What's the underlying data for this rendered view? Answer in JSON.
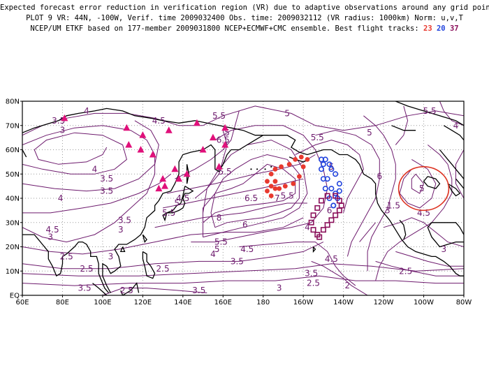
{
  "header": {
    "line1": "Expected forecast error reduction in verification region (VR) due to adaptive observations around any grid point.",
    "line2": "PLOT 9 VR: 44N, -100W, Verif. time 2009032400 Obs. time: 2009032112 (VR radius: 1000km) Norm: u,v,T",
    "line3_prefix": "NCEP/UM ETKF based on 177-member 2009031800 NCEP+ECMWF+CMC ensemble. Best flight tracks: ",
    "track_red": "23",
    "track_blue": "20",
    "track_purple": "37"
  },
  "colors": {
    "contour": "#6d1a6d",
    "coast": "#000000",
    "grid": "#9a9a9a",
    "track_red": "#e8392f",
    "track_blue": "#2244dd",
    "track_purple": "#8a0f5a",
    "vr_circle": "#dd3322",
    "dropsonde_site": "#e0107a"
  },
  "axes": {
    "lon_labels": [
      "60E",
      "80E",
      "100E",
      "120E",
      "140E",
      "160E",
      "180",
      "160W",
      "140W",
      "120W",
      "100W",
      "80W"
    ],
    "lat_labels": [
      "EQ",
      "10N",
      "20N",
      "30N",
      "40N",
      "50N",
      "60N",
      "70N",
      "80N"
    ]
  },
  "contour_labels": [
    {
      "text": "4",
      "lon": 92,
      "lat": 76
    },
    {
      "text": "3.5",
      "lon": 78,
      "lat": 72
    },
    {
      "text": "3",
      "lon": 80,
      "lat": 68
    },
    {
      "text": "4.5",
      "lon": 128,
      "lat": 72
    },
    {
      "text": "3.5",
      "lon": 102,
      "lat": 48
    },
    {
      "text": "4",
      "lon": 96,
      "lat": 52
    },
    {
      "text": "3.5",
      "lon": 102,
      "lat": 43
    },
    {
      "text": "3.5",
      "lon": 111,
      "lat": 31
    },
    {
      "text": "3",
      "lon": 109,
      "lat": 27
    },
    {
      "text": "4",
      "lon": 79,
      "lat": 40
    },
    {
      "text": "4.5",
      "lon": 75,
      "lat": 27
    },
    {
      "text": "3",
      "lon": 74,
      "lat": 24
    },
    {
      "text": "2.5",
      "lon": 82,
      "lat": 16
    },
    {
      "text": "3",
      "lon": 104,
      "lat": 16
    },
    {
      "text": "2.5",
      "lon": 92,
      "lat": 11
    },
    {
      "text": "2.5",
      "lon": 130,
      "lat": 11
    },
    {
      "text": "3.5",
      "lon": 91,
      "lat": 3
    },
    {
      "text": "2.5",
      "lon": 112,
      "lat": 2
    },
    {
      "text": "3.5",
      "lon": 148,
      "lat": 2
    },
    {
      "text": "3",
      "lon": 188,
      "lat": 3
    },
    {
      "text": "5.5",
      "lon": 133,
      "lat": 34
    },
    {
      "text": "5",
      "lon": 137,
      "lat": 38
    },
    {
      "text": "4.5",
      "lon": 140,
      "lat": 40
    },
    {
      "text": "8",
      "lon": 158,
      "lat": 32
    },
    {
      "text": "5.5",
      "lon": 159,
      "lat": 22
    },
    {
      "text": "5",
      "lon": 157,
      "lat": 19
    },
    {
      "text": "4",
      "lon": 155,
      "lat": 17
    },
    {
      "text": "4.5",
      "lon": 172,
      "lat": 19
    },
    {
      "text": "3.5",
      "lon": 167,
      "lat": 14
    },
    {
      "text": "6",
      "lon": 171,
      "lat": 29
    },
    {
      "text": "6.5",
      "lon": 174,
      "lat": 40
    },
    {
      "text": "5.5",
      "lon": 158,
      "lat": 74
    },
    {
      "text": "6.5",
      "lon": 160,
      "lat": 64
    },
    {
      "text": "5",
      "lon": 162,
      "lat": 67
    },
    {
      "text": "5.5",
      "lon": 161,
      "lat": 51
    },
    {
      "text": "7",
      "lon": 187,
      "lat": 40
    },
    {
      "text": "5.5",
      "lon": 192,
      "lat": 41
    },
    {
      "text": "5",
      "lon": 192,
      "lat": 75
    },
    {
      "text": "5.5",
      "lon": 207,
      "lat": 65
    },
    {
      "text": "5",
      "lon": 214,
      "lat": 53
    },
    {
      "text": "6",
      "lon": 213,
      "lat": 35
    },
    {
      "text": "4",
      "lon": 202,
      "lat": 28
    },
    {
      "text": "4.5",
      "lon": 214,
      "lat": 15
    },
    {
      "text": "3.5",
      "lon": 204,
      "lat": 9
    },
    {
      "text": "2.5",
      "lon": 205,
      "lat": 5
    },
    {
      "text": "2",
      "lon": 222,
      "lat": 4
    },
    {
      "text": "5",
      "lon": 233,
      "lat": 67
    },
    {
      "text": "6",
      "lon": 238,
      "lat": 49
    },
    {
      "text": "5.5",
      "lon": 263,
      "lat": 76
    },
    {
      "text": "4",
      "lon": 276,
      "lat": 70
    },
    {
      "text": "5",
      "lon": 259,
      "lat": 44
    },
    {
      "text": "4.5",
      "lon": 260,
      "lat": 34
    },
    {
      "text": "3",
      "lon": 242,
      "lat": 35
    },
    {
      "text": "3",
      "lon": 270,
      "lat": 19
    },
    {
      "text": "2.5",
      "lon": 251,
      "lat": 10
    },
    {
      "text": "1.5",
      "lon": 245,
      "lat": 37
    }
  ],
  "dropsonde_sites": [
    {
      "lon": 81,
      "lat": 73
    },
    {
      "lon": 112,
      "lat": 69
    },
    {
      "lon": 120,
      "lat": 66
    },
    {
      "lon": 133,
      "lat": 68
    },
    {
      "lon": 147,
      "lat": 71
    },
    {
      "lon": 161,
      "lat": 69
    },
    {
      "lon": 155,
      "lat": 65
    },
    {
      "lon": 150,
      "lat": 60
    },
    {
      "lon": 113,
      "lat": 62
    },
    {
      "lon": 119,
      "lat": 60
    },
    {
      "lon": 125,
      "lat": 58
    },
    {
      "lon": 161,
      "lat": 62
    },
    {
      "lon": 158,
      "lat": 53
    },
    {
      "lon": 136,
      "lat": 52
    },
    {
      "lon": 142,
      "lat": 50
    },
    {
      "lon": 130,
      "lat": 48
    },
    {
      "lon": 131,
      "lat": 45
    },
    {
      "lon": 138,
      "lat": 48
    },
    {
      "lon": 128,
      "lat": 44
    }
  ],
  "flight_tracks": {
    "red": [
      [
        182,
        47
      ],
      [
        184,
        50
      ],
      [
        186,
        52
      ],
      [
        189,
        53
      ],
      [
        193,
        54
      ],
      [
        196,
        56
      ],
      [
        199,
        57
      ],
      [
        202,
        56
      ],
      [
        200,
        53
      ],
      [
        198,
        49
      ],
      [
        195,
        46
      ],
      [
        191,
        45
      ],
      [
        188,
        44
      ],
      [
        186,
        44
      ],
      [
        184,
        45
      ],
      [
        182,
        43
      ],
      [
        184,
        41
      ],
      [
        186,
        47
      ]
    ],
    "blue": [
      [
        209,
        56
      ],
      [
        209,
        52
      ],
      [
        210,
        48
      ],
      [
        211,
        44
      ],
      [
        213,
        40
      ],
      [
        215,
        37
      ],
      [
        217,
        40
      ],
      [
        218,
        43
      ],
      [
        218,
        46
      ],
      [
        216,
        50
      ],
      [
        214,
        52
      ],
      [
        213,
        54
      ],
      [
        211,
        56
      ],
      [
        210,
        54
      ],
      [
        212,
        48
      ],
      [
        214,
        44
      ],
      [
        216,
        42
      ],
      [
        215,
        37
      ]
    ],
    "purple": [
      [
        207,
        25
      ],
      [
        210,
        27
      ],
      [
        212,
        29
      ],
      [
        214,
        31
      ],
      [
        216,
        33
      ],
      [
        218,
        35
      ],
      [
        219,
        37
      ],
      [
        218,
        39
      ],
      [
        216,
        41
      ],
      [
        212,
        41
      ],
      [
        209,
        39
      ],
      [
        207,
        36
      ],
      [
        205,
        33
      ],
      [
        204,
        30
      ],
      [
        205,
        27
      ],
      [
        208,
        24
      ]
    ]
  },
  "verification_region": {
    "center_lon": 260,
    "center_lat": 44,
    "radius_km": 1000
  }
}
